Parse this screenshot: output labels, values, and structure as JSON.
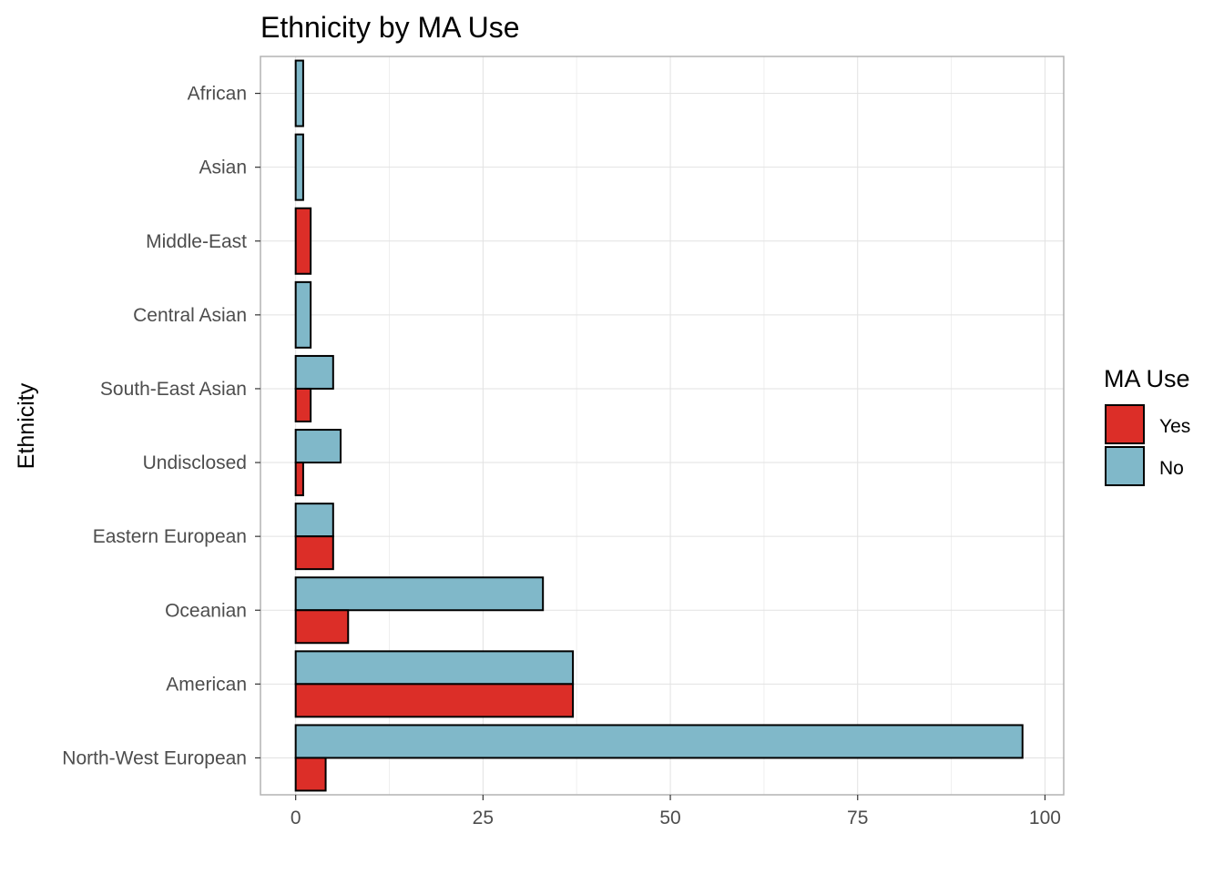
{
  "chart_data": {
    "type": "bar",
    "orientation": "horizontal",
    "title": "Ethnicity by MA Use",
    "xlabel": "",
    "ylabel": "Ethnicity",
    "categories": [
      "African",
      "Asian",
      "Middle-East",
      "Central Asian",
      "South-East Asian",
      "Undisclosed",
      "Eastern European",
      "Oceanian",
      "American",
      "North-West European"
    ],
    "series": [
      {
        "name": "Yes",
        "color": "#dc2e28",
        "values": [
          0,
          0,
          2,
          0,
          2,
          1,
          5,
          7,
          37,
          4
        ]
      },
      {
        "name": "No",
        "color": "#80b8c9",
        "values": [
          1,
          1,
          0,
          2,
          5,
          6,
          5,
          33,
          37,
          97
        ]
      }
    ],
    "xlim": [
      -4.7,
      102.5
    ],
    "xticks": [
      0,
      25,
      50,
      75,
      100
    ],
    "grid": true,
    "legend": {
      "title": "MA Use",
      "placement": "right"
    }
  }
}
